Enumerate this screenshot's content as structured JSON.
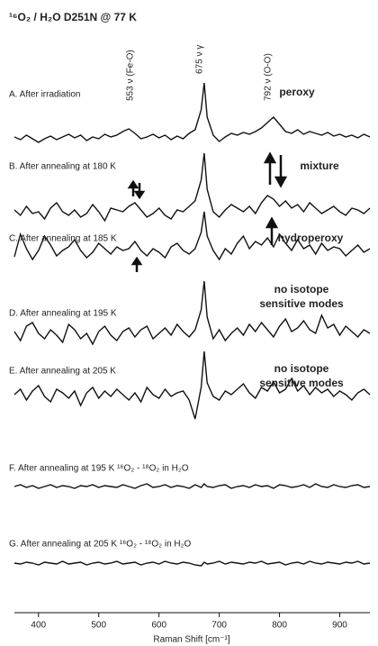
{
  "chart_data": {
    "type": "line",
    "title": "¹⁶O₂ / H₂O D251N @ 77 K",
    "x_label": "Raman Shift [cm⁻¹]",
    "xlim": [
      360,
      950
    ],
    "xticks": [
      400,
      500,
      600,
      700,
      800,
      900
    ],
    "annotations": [
      "553 ν (Fe-O)",
      "675 ν γ",
      "792 ν (O-O)"
    ],
    "state_labels": [
      [
        "peroxy"
      ],
      [
        "mixture"
      ],
      [
        "hydroperoxy"
      ],
      [
        "no isotope",
        "sensitive modes"
      ],
      [
        "no isotope",
        "sensitive modes"
      ]
    ],
    "x": [
      360,
      370,
      380,
      390,
      400,
      410,
      420,
      430,
      440,
      450,
      460,
      470,
      480,
      490,
      500,
      510,
      520,
      530,
      540,
      550,
      560,
      570,
      580,
      590,
      600,
      610,
      620,
      630,
      640,
      650,
      660,
      670,
      675,
      680,
      690,
      700,
      710,
      720,
      730,
      740,
      750,
      760,
      770,
      780,
      790,
      800,
      810,
      820,
      830,
      840,
      850,
      860,
      870,
      880,
      890,
      900,
      910,
      920,
      930,
      940,
      950
    ],
    "series": [
      {
        "name": "A. After irradiation",
        "color": "#111111",
        "values": [
          0,
          -3,
          2,
          -2,
          -6,
          -2,
          1,
          -3,
          0,
          3,
          -1,
          2,
          -4,
          0,
          -2,
          3,
          0,
          2,
          6,
          9,
          4,
          -2,
          0,
          3,
          -1,
          2,
          -3,
          1,
          -2,
          4,
          8,
          30,
          60,
          22,
          2,
          -5,
          0,
          4,
          2,
          5,
          3,
          6,
          10,
          16,
          22,
          14,
          6,
          4,
          8,
          3,
          6,
          4,
          2,
          5,
          1,
          3,
          0,
          2,
          -1,
          3,
          0
        ]
      },
      {
        "name": "B. After annealing at 180 K",
        "color": "#111111",
        "values": [
          2,
          -4,
          6,
          -2,
          0,
          -8,
          4,
          10,
          0,
          -4,
          2,
          -6,
          -2,
          8,
          0,
          -10,
          4,
          2,
          0,
          6,
          10,
          2,
          -6,
          -2,
          4,
          -4,
          -8,
          2,
          0,
          6,
          12,
          35,
          65,
          25,
          0,
          -6,
          2,
          8,
          4,
          0,
          6,
          -2,
          10,
          18,
          14,
          6,
          12,
          4,
          8,
          0,
          10,
          4,
          -2,
          2,
          6,
          0,
          -4,
          4,
          2,
          -2,
          4
        ]
      },
      {
        "name": "C. After annealing at 185 K",
        "color": "#111111",
        "values": [
          -5,
          20,
          4,
          -8,
          2,
          18,
          8,
          -4,
          2,
          6,
          14,
          2,
          -6,
          0,
          10,
          4,
          -2,
          6,
          2,
          4,
          12,
          2,
          -4,
          4,
          0,
          -6,
          6,
          10,
          2,
          -2,
          4,
          22,
          45,
          18,
          2,
          -8,
          4,
          -2,
          10,
          18,
          4,
          12,
          8,
          16,
          6,
          20,
          10,
          2,
          14,
          4,
          8,
          -2,
          10,
          2,
          6,
          4,
          -4,
          2,
          8,
          0,
          4
        ]
      },
      {
        "name": "D. After annealing at 195 K",
        "color": "#111111",
        "values": [
          4,
          -6,
          10,
          14,
          2,
          -4,
          6,
          0,
          -8,
          12,
          6,
          -4,
          2,
          -10,
          4,
          10,
          0,
          -6,
          4,
          8,
          -2,
          6,
          10,
          -4,
          2,
          8,
          0,
          12,
          4,
          -2,
          6,
          28,
          60,
          20,
          -4,
          6,
          -6,
          2,
          8,
          0,
          12,
          4,
          14,
          6,
          -2,
          10,
          18,
          4,
          8,
          16,
          6,
          2,
          22,
          8,
          12,
          0,
          10,
          4,
          -2,
          6,
          2
        ]
      },
      {
        "name": "E. After annealing at 205 K",
        "color": "#111111",
        "values": [
          2,
          8,
          -4,
          6,
          12,
          0,
          -6,
          8,
          4,
          -2,
          6,
          -10,
          4,
          10,
          -2,
          6,
          0,
          8,
          2,
          -4,
          4,
          -6,
          10,
          2,
          -2,
          8,
          0,
          4,
          6,
          -4,
          -25,
          10,
          50,
          15,
          0,
          -4,
          6,
          2,
          8,
          14,
          4,
          -2,
          10,
          6,
          16,
          4,
          8,
          20,
          6,
          12,
          2,
          10,
          4,
          8,
          0,
          6,
          2,
          -4,
          4,
          8,
          2
        ]
      },
      {
        "name": "F. After annealing at 195 K ¹⁶O₂ - ¹⁸O₂ in H₂O",
        "color": "#111111",
        "values": [
          0,
          2,
          -1,
          1,
          -2,
          0,
          2,
          -1,
          1,
          0,
          -2,
          1,
          0,
          2,
          -1,
          1,
          0,
          -1,
          2,
          0,
          -2,
          1,
          3,
          -1,
          0,
          2,
          -1,
          1,
          0,
          -2,
          2,
          -1,
          3,
          0,
          -1,
          1,
          2,
          -2,
          0,
          1,
          -1,
          2,
          0,
          1,
          -2,
          2,
          1,
          -1,
          0,
          2,
          -1,
          3,
          0,
          -1,
          2,
          0,
          -1,
          1,
          2,
          -1,
          0
        ]
      },
      {
        "name": "G. After annealing at 205 K ¹⁶O₂ - ¹⁸O₂ in H₂O",
        "color": "#111111",
        "values": [
          0,
          -1,
          1,
          0,
          -2,
          1,
          0,
          -1,
          2,
          -1,
          0,
          1,
          -2,
          0,
          1,
          -1,
          0,
          2,
          -1,
          0,
          1,
          -2,
          0,
          1,
          -1,
          2,
          0,
          -1,
          1,
          0,
          -2,
          -3,
          1,
          -1,
          0,
          2,
          -1,
          1,
          0,
          -1,
          1,
          0,
          2,
          -1,
          0,
          1,
          -2,
          0,
          1,
          -1,
          2,
          0,
          -1,
          1,
          0,
          -1,
          1,
          0,
          2,
          -1,
          0
        ]
      }
    ]
  }
}
